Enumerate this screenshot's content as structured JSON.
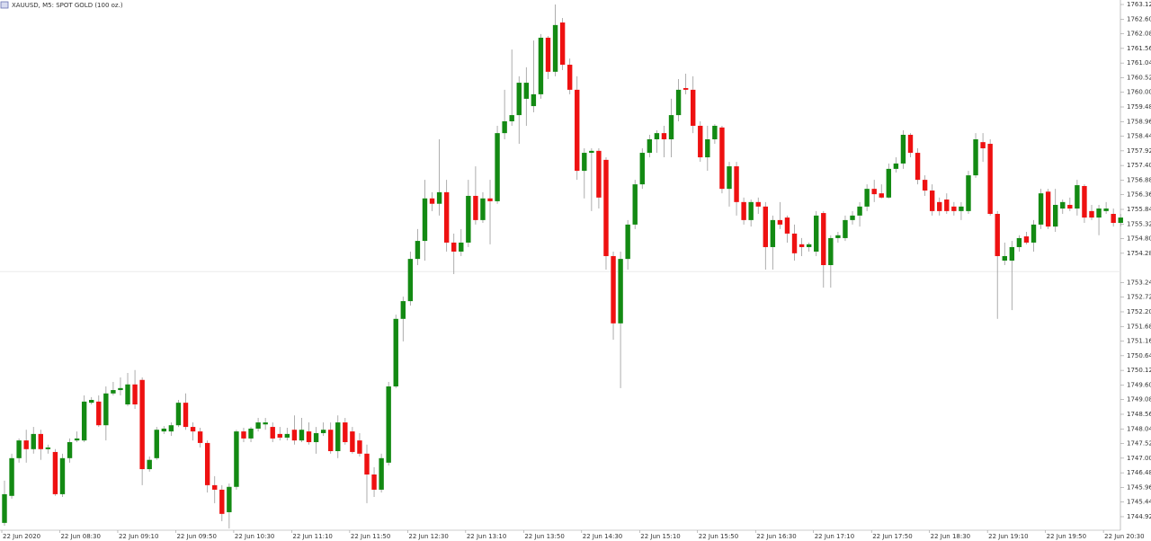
{
  "chart_data": {
    "type": "candlestick",
    "title": "XAUUSD, M5: SPOT GOLD (100 oz.)",
    "up_color": "#138a13",
    "down_color": "#ee1111",
    "ylim": [
      1744.44,
      1763.28
    ],
    "bid_line": 1753.63,
    "yticks": [
      1763.12,
      {
        "value": 1762.6,
        "label": "1762.60"
      },
      1762.08,
      1761.56,
      1761.04,
      1760.52,
      {
        "value": 1760,
        "label": "1760.00"
      },
      1759.48,
      1758.96,
      1758.44,
      1757.92,
      {
        "value": 1757.4,
        "label": "1757.40"
      },
      1756.88,
      1756.36,
      1755.84,
      1755.32,
      {
        "value": 1754.8,
        "label": "1754.80"
      },
      1754.28,
      1753.24,
      1752.72,
      {
        "value": 1752.2,
        "label": "1752.20"
      },
      1751.68,
      1751.16,
      1750.64,
      1750.12,
      {
        "value": 1749.6,
        "label": "1749.60"
      },
      1749.08,
      1748.56,
      1748.04,
      1747.52,
      {
        "value": 1747,
        "label": "1747.00"
      },
      1746.48,
      1745.96,
      1745.44,
      1744.92
    ],
    "categories": [
      "22 Jun 2020",
      null,
      null,
      null,
      null,
      null,
      null,
      null,
      "22 Jun 08:30",
      null,
      null,
      null,
      null,
      null,
      null,
      null,
      "22 Jun 09:10",
      null,
      null,
      null,
      null,
      null,
      null,
      null,
      "22 Jun 09:50",
      null,
      null,
      null,
      null,
      null,
      null,
      null,
      "22 Jun 10:30",
      null,
      null,
      null,
      null,
      null,
      null,
      null,
      "22 Jun 11:10",
      null,
      null,
      null,
      null,
      null,
      null,
      null,
      "22 Jun 11:50",
      null,
      null,
      null,
      null,
      null,
      null,
      null,
      "22 Jun 12:30",
      null,
      null,
      null,
      null,
      null,
      null,
      null,
      "22 Jun 13:10",
      null,
      null,
      null,
      null,
      null,
      null,
      null,
      "22 Jun 13:50",
      null,
      null,
      null,
      null,
      null,
      null,
      null,
      "22 Jun 14:30",
      null,
      null,
      null,
      null,
      null,
      null,
      null,
      "22 Jun 15:10",
      null,
      null,
      null,
      null,
      null,
      null,
      null,
      "22 Jun 15:50",
      null,
      null,
      null,
      null,
      null,
      null,
      null,
      "22 Jun 16:30",
      null,
      null,
      null,
      null,
      null,
      null,
      null,
      "22 Jun 17:10",
      null,
      null,
      null,
      null,
      null,
      null,
      null,
      "22 Jun 17:50",
      null,
      null,
      null,
      null,
      null,
      null,
      null,
      "22 Jun 18:30",
      null,
      null,
      null,
      null,
      null,
      null,
      null,
      "22 Jun 19:10",
      null,
      null,
      null,
      null,
      null,
      null,
      null,
      "22 Jun 19:50",
      null,
      null,
      null,
      null,
      null,
      null,
      null,
      "22 Jun 20:30",
      null,
      null
    ],
    "candles": [
      [
        1744.7,
        1746.2,
        1744.6,
        1745.72
      ],
      [
        1745.66,
        1747.16,
        1745.56,
        1747.0
      ],
      [
        1747.0,
        1747.7,
        1746.84,
        1747.63
      ],
      [
        1747.63,
        1748.01,
        1746.84,
        1747.32
      ],
      [
        1747.32,
        1748.11,
        1747.16,
        1747.86
      ],
      [
        1747.86,
        1748.01,
        1746.94,
        1747.32
      ],
      [
        1747.32,
        1747.48,
        1747.16,
        1747.38
      ],
      [
        1747.22,
        1747.32,
        1745.66,
        1745.72
      ],
      [
        1745.72,
        1747.16,
        1745.62,
        1747.0
      ],
      [
        1747.0,
        1747.7,
        1746.84,
        1747.57
      ],
      [
        1747.63,
        1747.95,
        1747.57,
        1747.7
      ],
      [
        1747.63,
        1749.23,
        1747.57,
        1749.01
      ],
      [
        1748.97,
        1749.17,
        1748.91,
        1749.07
      ],
      [
        1749.01,
        1749.23,
        1748.11,
        1748.17
      ],
      [
        1748.17,
        1749.55,
        1747.63,
        1749.3
      ],
      [
        1749.3,
        1749.71,
        1749.23,
        1749.42
      ],
      [
        1749.42,
        1749.87,
        1749.23,
        1749.49
      ],
      [
        1748.91,
        1750.03,
        1748.85,
        1749.62
      ],
      [
        1749.62,
        1750.13,
        1748.75,
        1748.91
      ],
      [
        1749.78,
        1749.87,
        1746.04,
        1746.61
      ],
      [
        1746.61,
        1747.06,
        1746.52,
        1746.94
      ],
      [
        1747.0,
        1748.11,
        1746.94,
        1748.01
      ],
      [
        1747.95,
        1748.14,
        1747.86,
        1748.05
      ],
      [
        1747.95,
        1748.27,
        1747.79,
        1748.17
      ],
      [
        1748.17,
        1749.07,
        1748.11,
        1748.97
      ],
      [
        1748.97,
        1749.3,
        1748.01,
        1748.11
      ],
      [
        1748.11,
        1748.27,
        1747.63,
        1747.95
      ],
      [
        1747.95,
        1748.08,
        1747.38,
        1747.54
      ],
      [
        1747.54,
        1747.63,
        1745.78,
        1746.04
      ],
      [
        1746.04,
        1746.36,
        1745.4,
        1745.88
      ],
      [
        1745.88,
        1746.04,
        1744.76,
        1745.02
      ],
      [
        1745.08,
        1746.1,
        1744.5,
        1745.98
      ],
      [
        1745.98,
        1748.01,
        1745.88,
        1747.95
      ],
      [
        1747.95,
        1748.08,
        1747.57,
        1747.7
      ],
      [
        1747.7,
        1748.11,
        1747.57,
        1748.05
      ],
      [
        1748.05,
        1748.43,
        1747.95,
        1748.27
      ],
      [
        1748.2,
        1748.43,
        1748.01,
        1748.27
      ],
      [
        1748.11,
        1748.27,
        1747.57,
        1747.7
      ],
      [
        1747.86,
        1748.11,
        1747.63,
        1747.73
      ],
      [
        1747.73,
        1748.08,
        1747.63,
        1747.86
      ],
      [
        1748.01,
        1748.52,
        1747.48,
        1747.63
      ],
      [
        1747.63,
        1748.43,
        1747.57,
        1748.01
      ],
      [
        1747.95,
        1748.27,
        1747.48,
        1747.57
      ],
      [
        1747.57,
        1748.11,
        1747.16,
        1747.89
      ],
      [
        1747.89,
        1748.27,
        1747.79,
        1748.01
      ],
      [
        1748.01,
        1748.27,
        1747.16,
        1747.25
      ],
      [
        1747.25,
        1748.52,
        1747.0,
        1748.27
      ],
      [
        1748.27,
        1748.43,
        1747.48,
        1747.57
      ],
      [
        1747.95,
        1748.11,
        1747.16,
        1747.22
      ],
      [
        1747.63,
        1747.89,
        1747.06,
        1747.16
      ],
      [
        1747.16,
        1747.48,
        1745.4,
        1746.42
      ],
      [
        1746.42,
        1746.68,
        1745.62,
        1745.88
      ],
      [
        1745.88,
        1747.16,
        1745.78,
        1747.0
      ],
      [
        1746.84,
        1749.71,
        1746.74,
        1749.55
      ],
      [
        1749.55,
        1752.1,
        1749.49,
        1751.95
      ],
      [
        1751.95,
        1752.74,
        1751.15,
        1752.58
      ],
      [
        1752.58,
        1754.34,
        1752.42,
        1754.08
      ],
      [
        1754.08,
        1755.14,
        1753.86,
        1754.72
      ],
      [
        1754.72,
        1756.89,
        1754.02,
        1756.23
      ],
      [
        1756.23,
        1756.45,
        1755.78,
        1756.04
      ],
      [
        1756.04,
        1758.33,
        1755.62,
        1756.45
      ],
      [
        1756.45,
        1756.89,
        1754.34,
        1754.66
      ],
      [
        1754.66,
        1754.98,
        1753.54,
        1754.34
      ],
      [
        1754.34,
        1755.14,
        1754.18,
        1754.66
      ],
      [
        1754.66,
        1756.89,
        1754.5,
        1756.32
      ],
      [
        1756.32,
        1757.37,
        1755.3,
        1755.46
      ],
      [
        1755.46,
        1756.45,
        1755.36,
        1756.23
      ],
      [
        1756.23,
        1756.89,
        1754.6,
        1756.13
      ],
      [
        1756.13,
        1758.81,
        1756.04,
        1758.55
      ],
      [
        1758.55,
        1760.09,
        1758.33,
        1758.97
      ],
      [
        1758.97,
        1761.52,
        1758.81,
        1759.19
      ],
      [
        1759.19,
        1760.57,
        1758.17,
        1760.34
      ],
      [
        1759.77,
        1760.89,
        1758.81,
        1760.34
      ],
      [
        1759.51,
        1761.84,
        1759.29,
        1759.93
      ],
      [
        1759.93,
        1762.07,
        1759.77,
        1761.94
      ],
      [
        1761.94,
        1762.0,
        1760.47,
        1760.73
      ],
      [
        1760.73,
        1763.12,
        1760.57,
        1762.39
      ],
      [
        1762.48,
        1762.64,
        1760.79,
        1760.98
      ],
      [
        1760.98,
        1761.2,
        1759.93,
        1760.09
      ],
      [
        1760.09,
        1760.57,
        1756.89,
        1757.21
      ],
      [
        1757.21,
        1758.01,
        1756.23,
        1757.85
      ],
      [
        1757.85,
        1758.01,
        1755.78,
        1757.92
      ],
      [
        1757.92,
        1758.01,
        1755.87,
        1756.26
      ],
      [
        1757.6,
        1757.69,
        1753.7,
        1754.18
      ],
      [
        1754.18,
        1754.34,
        1751.21,
        1751.79
      ],
      [
        1751.79,
        1754.34,
        1749.49,
        1754.08
      ],
      [
        1754.08,
        1755.46,
        1753.7,
        1755.3
      ],
      [
        1755.3,
        1756.89,
        1755.14,
        1756.73
      ],
      [
        1756.73,
        1758.01,
        1756.57,
        1757.85
      ],
      [
        1757.85,
        1758.49,
        1757.69,
        1758.33
      ],
      [
        1758.33,
        1758.65,
        1757.85,
        1758.55
      ],
      [
        1758.55,
        1758.81,
        1757.69,
        1758.33
      ],
      [
        1758.33,
        1759.77,
        1757.69,
        1759.19
      ],
      [
        1759.19,
        1760.47,
        1758.97,
        1760.09
      ],
      [
        1760.15,
        1760.66,
        1759.93,
        1760.09
      ],
      [
        1760.09,
        1760.57,
        1758.55,
        1758.81
      ],
      [
        1758.81,
        1758.97,
        1757.53,
        1757.69
      ],
      [
        1757.69,
        1758.81,
        1757.21,
        1758.33
      ],
      [
        1758.33,
        1758.87,
        1758.17,
        1758.81
      ],
      [
        1758.75,
        1758.81,
        1756.41,
        1756.57
      ],
      [
        1756.57,
        1757.53,
        1755.94,
        1757.37
      ],
      [
        1757.37,
        1757.53,
        1755.62,
        1756.1
      ],
      [
        1756.1,
        1756.26,
        1755.3,
        1755.46
      ],
      [
        1755.46,
        1756.19,
        1755.23,
        1756.1
      ],
      [
        1756.1,
        1756.26,
        1755.68,
        1755.94
      ],
      [
        1755.94,
        1756.1,
        1753.7,
        1754.5
      ],
      [
        1754.5,
        1755.62,
        1753.7,
        1755.46
      ],
      [
        1755.46,
        1756.1,
        1755.14,
        1755.3
      ],
      [
        1755.55,
        1755.62,
        1754.66,
        1754.98
      ],
      [
        1754.98,
        1755.3,
        1754.02,
        1754.28
      ],
      [
        1754.6,
        1754.82,
        1754.18,
        1754.5
      ],
      [
        1754.5,
        1754.66,
        1754.34,
        1754.6
      ],
      [
        1754.34,
        1755.78,
        1754.18,
        1755.62
      ],
      [
        1755.71,
        1755.78,
        1753.06,
        1753.86
      ],
      [
        1753.86,
        1754.92,
        1753.06,
        1754.82
      ],
      [
        1754.82,
        1755.04,
        1754.66,
        1754.92
      ],
      [
        1754.82,
        1755.62,
        1754.72,
        1755.46
      ],
      [
        1755.46,
        1755.78,
        1755.3,
        1755.62
      ],
      [
        1755.62,
        1756.1,
        1755.23,
        1755.94
      ],
      [
        1755.94,
        1756.73,
        1755.78,
        1756.57
      ],
      [
        1756.57,
        1756.89,
        1756.1,
        1756.38
      ],
      [
        1756.41,
        1756.73,
        1756.23,
        1756.26
      ],
      [
        1756.26,
        1757.47,
        1756.23,
        1757.28
      ],
      [
        1757.28,
        1757.69,
        1757.15,
        1757.47
      ],
      [
        1757.47,
        1758.65,
        1757.28,
        1758.49
      ],
      [
        1758.49,
        1758.55,
        1757.69,
        1757.85
      ],
      [
        1757.85,
        1758.01,
        1756.73,
        1756.89
      ],
      [
        1756.89,
        1757.05,
        1756.32,
        1756.51
      ],
      [
        1756.51,
        1756.73,
        1755.62,
        1755.78
      ],
      [
        1756.1,
        1756.26,
        1755.62,
        1755.78
      ],
      [
        1756.19,
        1756.41,
        1755.68,
        1755.78
      ],
      [
        1755.94,
        1756.1,
        1755.62,
        1755.78
      ],
      [
        1755.78,
        1756.1,
        1755.46,
        1755.94
      ],
      [
        1755.78,
        1757.21,
        1755.68,
        1757.05
      ],
      [
        1757.05,
        1758.55,
        1756.96,
        1758.33
      ],
      [
        1758.23,
        1758.55,
        1757.53,
        1758.01
      ],
      [
        1758.17,
        1758.33,
        1755.62,
        1755.68
      ],
      [
        1755.68,
        1755.78,
        1751.95,
        1754.18
      ],
      [
        1754.02,
        1754.66,
        1753.86,
        1754.18
      ],
      [
        1754.02,
        1754.72,
        1752.26,
        1754.5
      ],
      [
        1754.5,
        1754.92,
        1754.34,
        1754.82
      ],
      [
        1754.88,
        1755.04,
        1754.6,
        1754.66
      ],
      [
        1754.66,
        1755.46,
        1754.34,
        1755.3
      ],
      [
        1755.3,
        1756.57,
        1755.14,
        1756.41
      ],
      [
        1756.47,
        1756.57,
        1755.14,
        1755.23
      ],
      [
        1755.23,
        1756.57,
        1755.04,
        1756.0
      ],
      [
        1755.87,
        1756.19,
        1755.68,
        1756.1
      ],
      [
        1756.0,
        1756.26,
        1755.78,
        1755.87
      ],
      [
        1755.87,
        1756.89,
        1755.62,
        1756.7
      ],
      [
        1756.67,
        1756.73,
        1755.36,
        1755.55
      ],
      [
        1755.78,
        1756.0,
        1755.46,
        1755.55
      ],
      [
        1755.55,
        1756.0,
        1754.92,
        1755.87
      ],
      [
        1755.78,
        1756.1,
        1755.68,
        1755.87
      ],
      [
        1755.68,
        1755.87,
        1755.23,
        1755.36
      ],
      [
        1755.36,
        1755.68,
        1755.23,
        1755.55
      ]
    ]
  }
}
